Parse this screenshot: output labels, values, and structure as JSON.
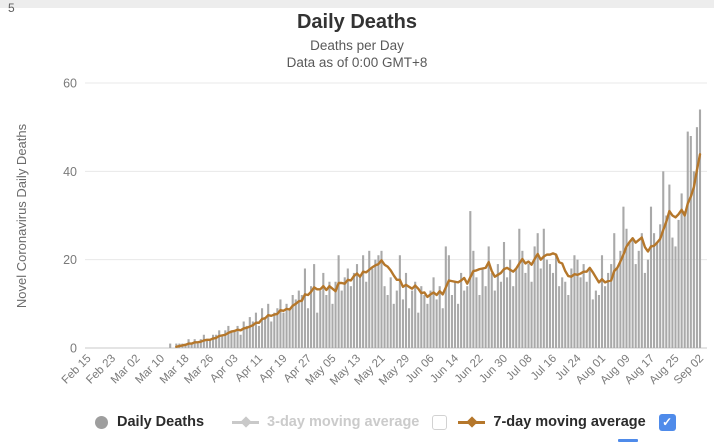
{
  "page": {
    "corner_text": "5"
  },
  "header": {
    "title": "Daily Deaths",
    "subtitle1": "Deaths per Day",
    "subtitle2": "Data as of 0:00 GMT+8"
  },
  "chart_data": {
    "type": "bar",
    "title": "Daily Deaths",
    "subtitle": "Deaths per Day — Data as of 0:00 GMT+8",
    "xlabel": "",
    "ylabel": "Novel Coronavirus Daily Deaths",
    "ylim": [
      0,
      60
    ],
    "yticks": [
      0,
      20,
      40,
      60
    ],
    "grid": true,
    "legend_position": "bottom",
    "xtick_labels": [
      "Feb 15",
      "Feb 23",
      "Mar 02",
      "Mar 10",
      "Mar 18",
      "Mar 26",
      "Apr 03",
      "Apr 11",
      "Apr 19",
      "Apr 27",
      "May 05",
      "May 13",
      "May 21",
      "May 29",
      "Jun 06",
      "Jun 14",
      "Jun 22",
      "Jun 30",
      "Jul 08",
      "Jul 16",
      "Jul 24",
      "Aug 01",
      "Aug 09",
      "Aug 17",
      "Aug 25",
      "Sep 02"
    ],
    "xtick_every_days": 8,
    "date_range": [
      "Feb 15",
      "Sep 02"
    ],
    "daily_values": [
      0,
      0,
      0,
      0,
      0,
      0,
      0,
      0,
      0,
      0,
      0,
      0,
      0,
      0,
      0,
      0,
      0,
      0,
      0,
      0,
      0,
      0,
      0,
      0,
      0,
      0,
      0,
      1,
      0,
      1,
      1,
      1,
      1,
      2,
      1,
      2,
      1,
      2,
      3,
      2,
      2,
      3,
      3,
      4,
      3,
      4,
      5,
      4,
      4,
      5,
      3,
      6,
      5,
      7,
      6,
      8,
      5,
      9,
      7,
      10,
      6,
      8,
      9,
      11,
      8,
      10,
      9,
      12,
      11,
      13,
      12,
      18,
      9,
      14,
      19,
      8,
      13,
      17,
      12,
      15,
      10,
      15,
      21,
      13,
      16,
      18,
      14,
      17,
      19,
      16,
      21,
      15,
      22,
      18,
      20,
      21,
      22,
      14,
      12,
      16,
      10,
      13,
      21,
      11,
      17,
      9,
      13,
      15,
      8,
      14,
      12,
      10,
      13,
      16,
      11,
      14,
      9,
      23,
      21,
      12,
      15,
      10,
      17,
      13,
      14,
      31,
      22,
      16,
      12,
      18,
      14,
      23,
      17,
      13,
      19,
      15,
      24,
      16,
      20,
      14,
      18,
      27,
      22,
      17,
      19,
      15,
      23,
      26,
      18,
      27,
      20,
      19,
      17,
      21,
      14,
      16,
      15,
      12,
      18,
      21,
      20,
      16,
      19,
      15,
      18,
      11,
      13,
      12,
      21,
      14,
      17,
      19,
      26,
      18,
      22,
      32,
      27,
      24,
      25,
      19,
      22,
      26,
      17,
      20,
      32,
      26,
      24,
      28,
      40,
      30,
      37,
      25,
      23,
      29,
      35,
      31,
      49,
      48,
      40,
      50,
      54
    ],
    "series": [
      {
        "name": "Daily Deaths",
        "render": "bar",
        "color": "#a9a9a9"
      },
      {
        "name": "3-day moving average",
        "render": "line",
        "color": "#c9c9c9",
        "enabled": false
      },
      {
        "name": "7-day moving average",
        "render": "line",
        "color": "#b5772b",
        "enabled": true,
        "derived_from": "daily_values",
        "window": 7
      }
    ]
  },
  "legend": {
    "daily": {
      "label": "Daily Deaths"
    },
    "ma3": {
      "label": "3-day moving average"
    },
    "ma7": {
      "label": "7-day moving average"
    },
    "checkbox_ma3": {
      "checked": false
    },
    "checkbox_ma7": {
      "checked": true,
      "checkmark": "✓"
    }
  },
  "colors": {
    "bar": "#a9a9a9",
    "ma7_line": "#b5772b",
    "ma3_disabled": "#c9c9c9",
    "grid": "#e8e8e8",
    "baseline": "#c9c9c9",
    "axis_text": "#7a7a7a",
    "checkbox_checked": "#4f8bea"
  }
}
